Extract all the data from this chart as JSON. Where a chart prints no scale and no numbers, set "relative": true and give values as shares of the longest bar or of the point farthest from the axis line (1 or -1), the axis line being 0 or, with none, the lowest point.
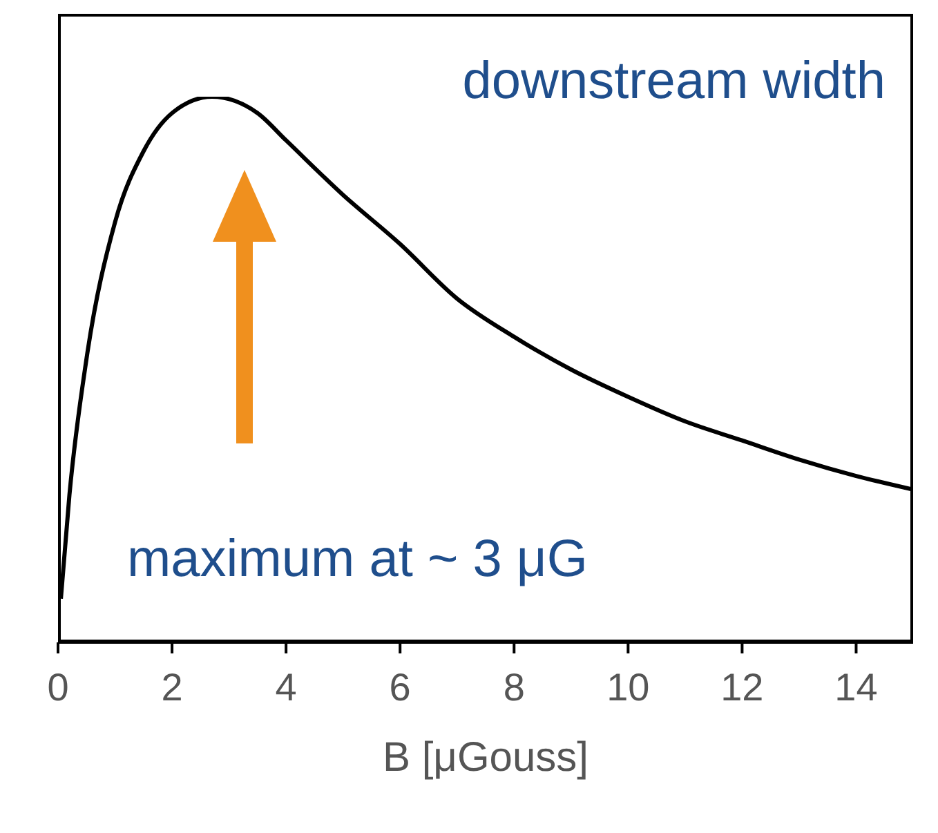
{
  "chart_data": {
    "type": "line",
    "relative": true,
    "xlabel": "B [μGouss]",
    "xlim": [
      0,
      15
    ],
    "xticks": [
      0,
      2,
      4,
      6,
      8,
      10,
      12,
      14
    ],
    "grid": false,
    "marker": "none",
    "line_style": "solid",
    "annotations": [
      "downstream width",
      "maximum at ~ 3 μG"
    ],
    "series": [
      {
        "color": "#000000",
        "x": [
          0.05,
          0.2,
          0.5,
          1,
          1.5,
          2,
          2.7,
          3.5,
          4,
          5,
          6,
          7,
          8,
          9,
          10,
          11,
          12,
          13,
          14,
          15
        ],
        "values": [
          0.08,
          0.27,
          0.52,
          0.77,
          0.9,
          0.97,
          1,
          0.97,
          0.92,
          0.82,
          0.73,
          0.63,
          0.56,
          0.5,
          0.45,
          0.405,
          0.37,
          0.335,
          0.305,
          0.28
        ]
      }
    ]
  }
}
